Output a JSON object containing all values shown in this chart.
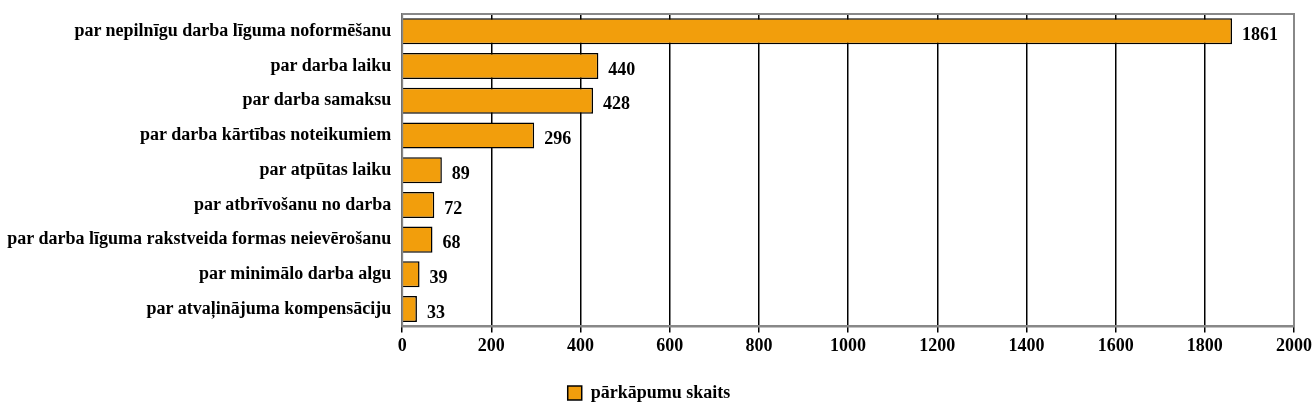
{
  "chart_data": {
    "type": "bar",
    "orientation": "horizontal",
    "categories": [
      "par nepilnīgu darba līguma noformēšanu",
      "par darba laiku",
      "par darba samaksu",
      "par darba kārtības noteikumiem",
      "par atpūtas laiku",
      "par atbrīvošanu no darba",
      "par darba līguma rakstveida formas neievērošanu",
      "par minimālo darba algu",
      "par atvaļinājuma kompensāciju"
    ],
    "series": [
      {
        "name": "pārkāpumu skaits",
        "color": "#f29e0c",
        "values": [
          1861,
          440,
          428,
          296,
          89,
          72,
          68,
          39,
          33
        ]
      }
    ],
    "xlim": [
      0,
      2000
    ],
    "xticks": [
      0,
      200,
      400,
      600,
      800,
      1000,
      1200,
      1400,
      1600,
      1800,
      2000
    ],
    "grid": "x",
    "legend": "bottom",
    "data_labels": true
  }
}
